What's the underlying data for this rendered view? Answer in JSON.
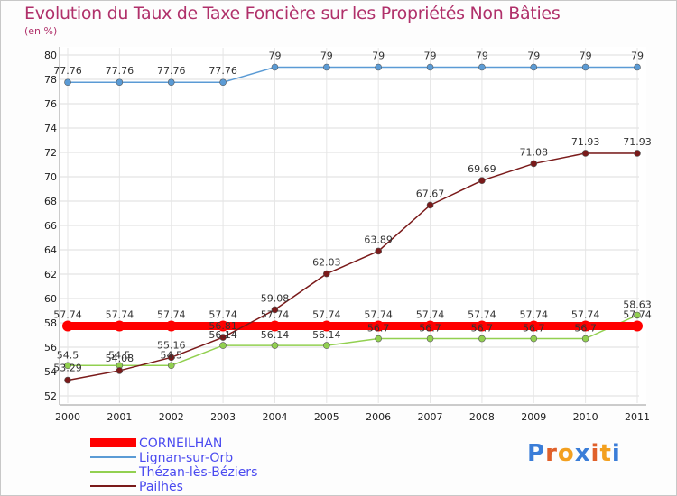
{
  "chart_data": {
    "type": "line",
    "title": "Evolution du Taux de Taxe Foncière sur les Propriétés Non Bâties",
    "ylabel": "(en %)",
    "xlabel": "",
    "ylim": [
      52,
      80
    ],
    "yticks": [
      52,
      54,
      56,
      58,
      60,
      62,
      64,
      66,
      68,
      70,
      72,
      74,
      76,
      78,
      80
    ],
    "categories": [
      "2000",
      "2001",
      "2002",
      "2003",
      "2004",
      "2005",
      "2006",
      "2007",
      "2008",
      "2009",
      "2010",
      "2011"
    ],
    "series": [
      {
        "name": "CORNEILHAN",
        "color": "#ff0000",
        "values": [
          57.74,
          57.74,
          57.74,
          57.74,
          57.74,
          57.74,
          57.74,
          57.74,
          57.74,
          57.74,
          57.74,
          57.74
        ],
        "labels": [
          "57.74",
          "57.74",
          "57.74",
          "57.74",
          "57.74",
          "57.74",
          "57.74",
          "57.74",
          "57.74",
          "57.74",
          "57.74",
          "57.74"
        ]
      },
      {
        "name": "Lignan-sur-Orb",
        "color": "#5b9bd5",
        "values": [
          77.76,
          77.76,
          77.76,
          77.76,
          79,
          79,
          79,
          79,
          79,
          79,
          79,
          79
        ],
        "labels": [
          "77.76",
          "77.76",
          "77.76",
          "77.76",
          "79",
          "79",
          "79",
          "79",
          "79",
          "79",
          "79",
          "79"
        ]
      },
      {
        "name": "Thézan-lès-Béziers",
        "color": "#92d050",
        "values": [
          54.5,
          54.5,
          54.5,
          56.14,
          56.14,
          56.14,
          56.7,
          56.7,
          56.7,
          56.7,
          56.7,
          58.63
        ],
        "labels": [
          "54.5",
          "54.5",
          "54.5",
          "56.14",
          "56.14",
          "56.14",
          "56.7",
          "56.7",
          "56.7",
          "56.7",
          "56.7",
          "58.63"
        ]
      },
      {
        "name": "Pailhès",
        "color": "#7a1a1a",
        "values": [
          53.29,
          54.08,
          55.16,
          56.81,
          59.08,
          62.03,
          63.89,
          67.67,
          69.69,
          71.08,
          71.93,
          71.93
        ],
        "labels": [
          "53.29",
          "54.08",
          "55.16",
          "56.81",
          "59.08",
          "62.03",
          "63.89",
          "67.67",
          "69.69",
          "71.08",
          "71.93",
          "71.93"
        ]
      }
    ],
    "legend": [
      "CORNEILHAN",
      "Lignan-sur-Orb",
      "Thézan-lès-Béziers",
      "Pailhès"
    ]
  },
  "logo": {
    "letters": [
      "P",
      "r",
      "o",
      "x",
      "i",
      "t",
      "i"
    ],
    "colors": [
      "#3a7dd8",
      "#e0602a",
      "#f3a01f",
      "#3a7dd8",
      "#e0602a",
      "#f3a01f",
      "#3a7dd8"
    ]
  }
}
